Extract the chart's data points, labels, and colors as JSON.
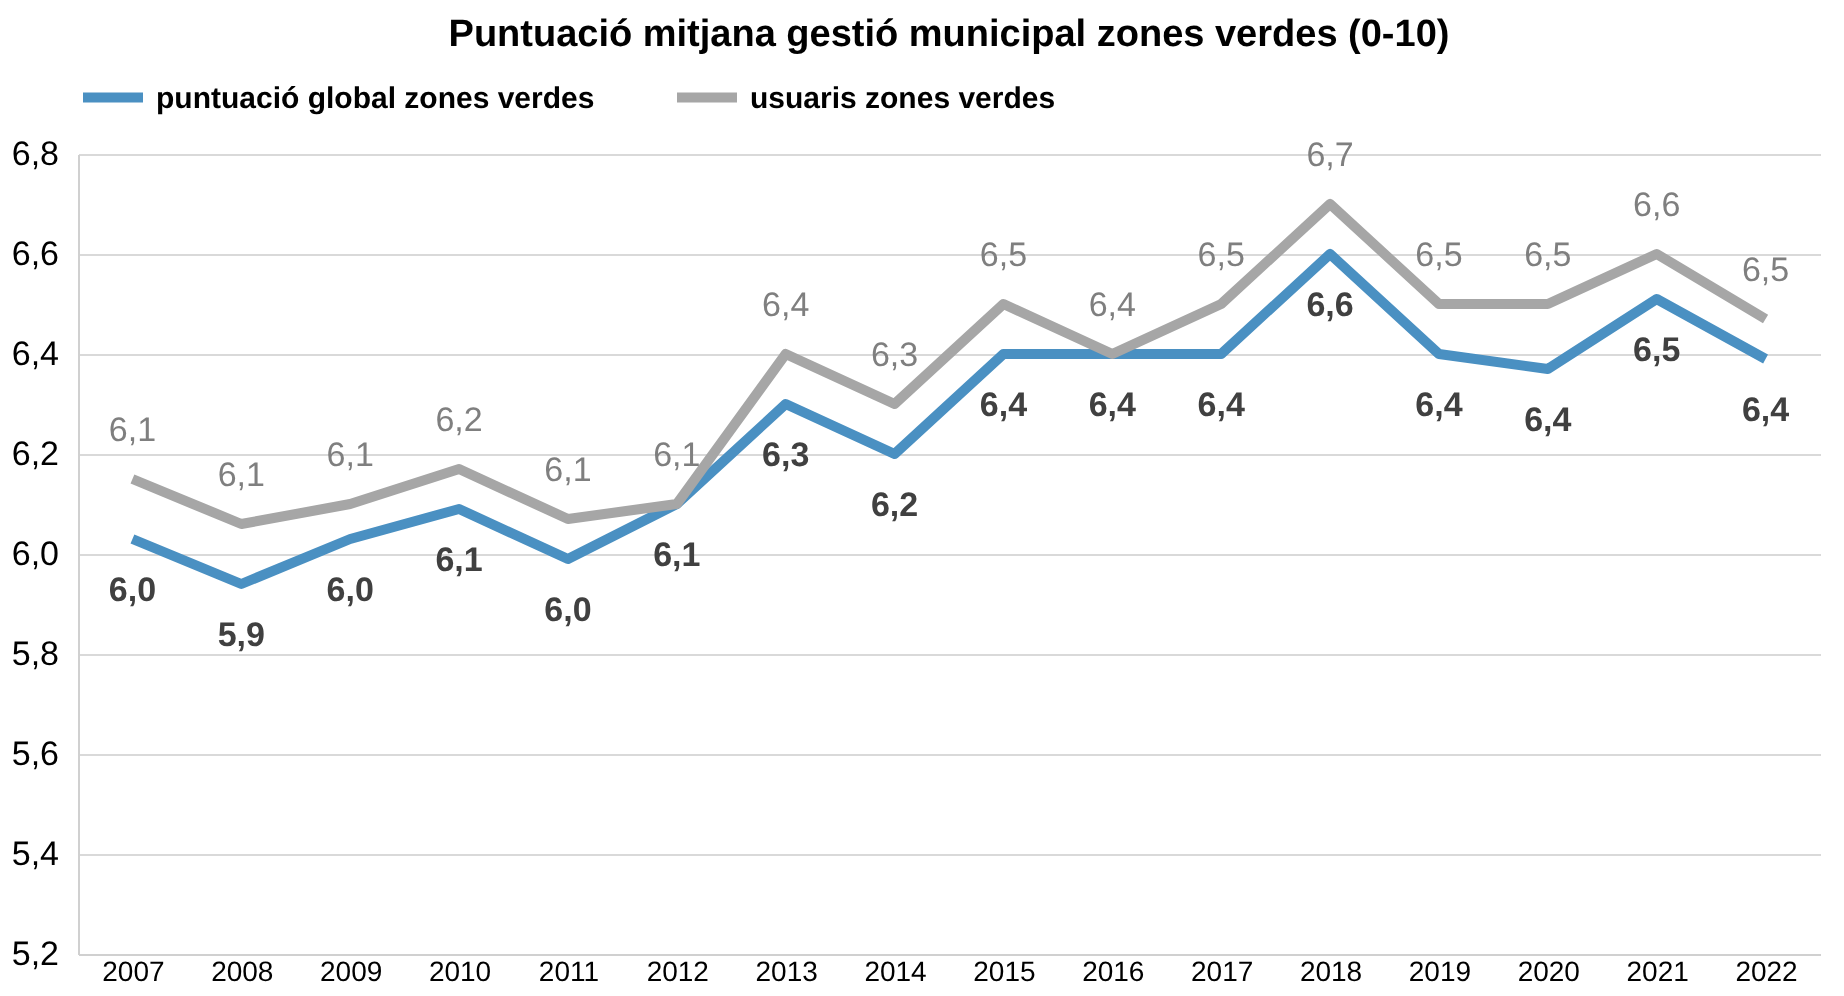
{
  "chart_data": {
    "type": "line",
    "title": "Puntuació mitjana  gestió municipal  zones verdes (0-10)",
    "categories": [
      "2007",
      "2008",
      "2009",
      "2010",
      "2011",
      "2012",
      "2013",
      "2014",
      "2015",
      "2016",
      "2017",
      "2018",
      "2019",
      "2020",
      "2021",
      "2022"
    ],
    "series": [
      {
        "name": "puntuació global zones verdes",
        "color": "#4a90c2",
        "values": [
          6.03,
          5.94,
          6.03,
          6.09,
          5.99,
          6.1,
          6.3,
          6.2,
          6.4,
          6.4,
          6.4,
          6.6,
          6.4,
          6.37,
          6.51,
          6.39
        ],
        "value_labels": [
          "6,0",
          "5,9",
          "6,0",
          "6,1",
          "6,0",
          "6,1",
          "6,3",
          "6,2",
          "6,4",
          "6,4",
          "6,4",
          "6,6",
          "6,4",
          "6,4",
          "6,5",
          "6,4"
        ]
      },
      {
        "name": "usuaris zones verdes",
        "color": "#a6a6a6",
        "values": [
          6.15,
          6.06,
          6.1,
          6.17,
          6.07,
          6.1,
          6.4,
          6.3,
          6.5,
          6.4,
          6.5,
          6.7,
          6.5,
          6.5,
          6.6,
          6.47
        ],
        "value_labels": [
          "6,1",
          "6,1",
          "6,1",
          "6,2",
          "6,1",
          "6,1",
          "6,4",
          "6,3",
          "6,5",
          "6,4",
          "6,5",
          "6,7",
          "6,5",
          "6,5",
          "6,6",
          "6,5"
        ]
      }
    ],
    "ylim": [
      5.2,
      6.8
    ],
    "yticks": [
      {
        "value": 5.2,
        "label": "5,2"
      },
      {
        "value": 5.4,
        "label": "5,4"
      },
      {
        "value": 5.6,
        "label": "5,6"
      },
      {
        "value": 5.8,
        "label": "5,8"
      },
      {
        "value": 6.0,
        "label": "6,0"
      },
      {
        "value": 6.2,
        "label": "6,2"
      },
      {
        "value": 6.4,
        "label": "6,4"
      },
      {
        "value": 6.6,
        "label": "6,6"
      },
      {
        "value": 6.8,
        "label": "6,8"
      }
    ],
    "grid": "y",
    "legend": "top",
    "marker": "none",
    "line_style": "solid"
  }
}
